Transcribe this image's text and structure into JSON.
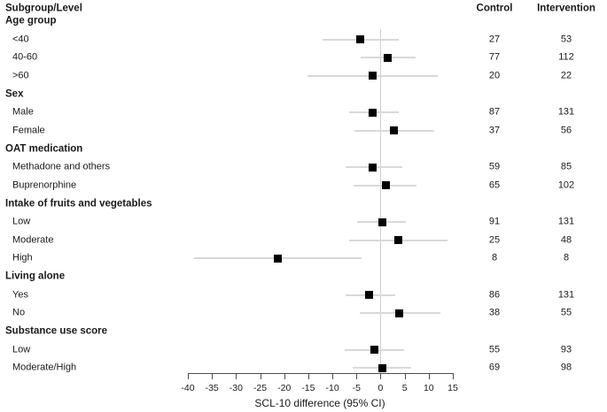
{
  "header": {
    "subgroup_level": "Subgroup/Level",
    "control": "Control",
    "intervention": "Intervention"
  },
  "colors": {
    "marker": "#000000",
    "ci_line": "#d9d9d9",
    "reference_line": "#cfcfcf",
    "axis": "#4d4d4d",
    "text": "#1a1a1a"
  },
  "chart_data": {
    "type": "forest",
    "xlabel": "SCL-10 difference (95% CI)",
    "xlim": [
      -40,
      15
    ],
    "x_ticks": [
      -40,
      -35,
      -30,
      -25,
      -20,
      -15,
      -10,
      -5,
      0,
      5,
      10,
      15
    ],
    "reference_line": 0,
    "columns": [
      "Control",
      "Intervention"
    ],
    "groups": [
      {
        "label": "Age group",
        "levels": [
          {
            "label": "<40",
            "estimate": -4.3,
            "ci_low": -12.1,
            "ci_high": 3.8,
            "control": 27,
            "intervention": 53
          },
          {
            "label": "40-60",
            "estimate": 1.5,
            "ci_low": -4.2,
            "ci_high": 7.3,
            "control": 77,
            "intervention": 112
          },
          {
            "label": ">60",
            "estimate": -1.7,
            "ci_low": -15.2,
            "ci_high": 11.8,
            "control": 20,
            "intervention": 22
          }
        ]
      },
      {
        "label": "Sex",
        "levels": [
          {
            "label": "Male",
            "estimate": -1.6,
            "ci_low": -6.6,
            "ci_high": 3.8,
            "control": 87,
            "intervention": 131
          },
          {
            "label": "Female",
            "estimate": 2.8,
            "ci_low": -5.4,
            "ci_high": 11.2,
            "control": 37,
            "intervention": 56
          }
        ]
      },
      {
        "label": "OAT medication",
        "levels": [
          {
            "label": "Methadone and others",
            "estimate": -1.7,
            "ci_low": -7.2,
            "ci_high": 4.6,
            "control": 59,
            "intervention": 85
          },
          {
            "label": "Buprenorphine",
            "estimate": 1.1,
            "ci_low": -5.6,
            "ci_high": 7.5,
            "control": 65,
            "intervention": 102
          }
        ]
      },
      {
        "label": "Intake of fruits and vegetables",
        "levels": [
          {
            "label": "Low",
            "estimate": 0.3,
            "ci_low": -4.8,
            "ci_high": 5.3,
            "control": 91,
            "intervention": 131
          },
          {
            "label": "Moderate",
            "estimate": 3.7,
            "ci_low": -6.6,
            "ci_high": 13.9,
            "control": 25,
            "intervention": 48
          },
          {
            "label": "High",
            "estimate": -21.3,
            "ci_low": -38.8,
            "ci_high": -3.9,
            "control": 8,
            "intervention": 8
          }
        ]
      },
      {
        "label": "Living alone",
        "levels": [
          {
            "label": "Yes",
            "estimate": -2.3,
            "ci_low": -7.2,
            "ci_high": 3.0,
            "control": 86,
            "intervention": 131
          },
          {
            "label": "No",
            "estimate": 3.8,
            "ci_low": -4.3,
            "ci_high": 12.4,
            "control": 38,
            "intervention": 55
          }
        ]
      },
      {
        "label": "Substance use score",
        "levels": [
          {
            "label": "Low",
            "estimate": -1.3,
            "ci_low": -7.4,
            "ci_high": 4.9,
            "control": 55,
            "intervention": 93
          },
          {
            "label": "Moderate/High",
            "estimate": 0.3,
            "ci_low": -5.7,
            "ci_high": 6.4,
            "control": 69,
            "intervention": 98
          }
        ]
      }
    ]
  }
}
